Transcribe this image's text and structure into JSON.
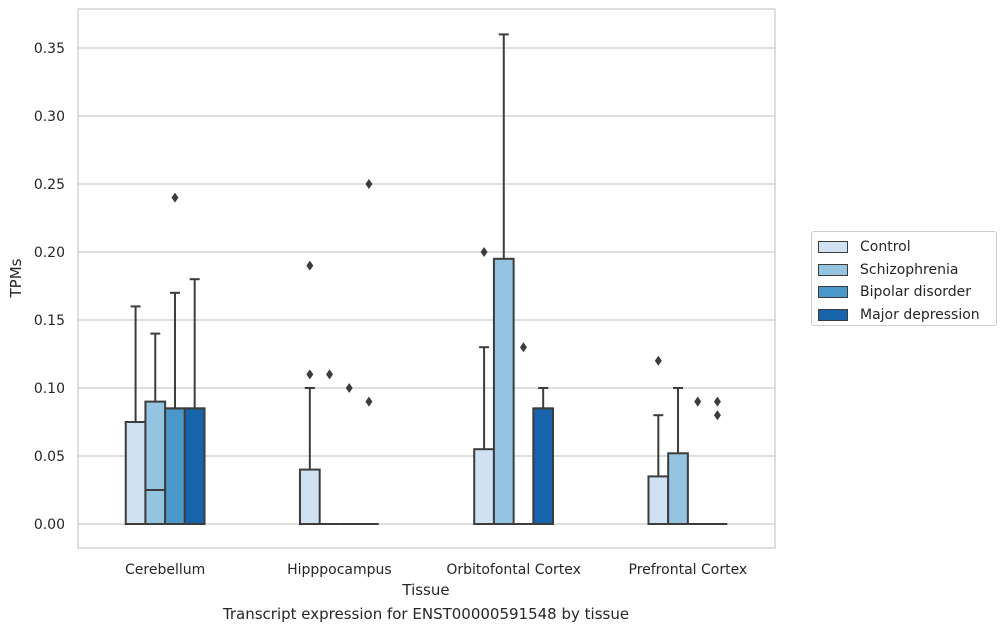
{
  "chart_data": {
    "type": "box",
    "xlabel": "Tissue",
    "ylabel": "TPMs",
    "caption": "Transcript expression for ENST00000591548 by tissue",
    "ylim": [
      -0.018,
      0.378
    ],
    "yticks": [
      "0.00",
      "0.05",
      "0.10",
      "0.15",
      "0.20",
      "0.25",
      "0.30",
      "0.35"
    ],
    "ytick_values": [
      0,
      0.05,
      0.1,
      0.15,
      0.2,
      0.25,
      0.3,
      0.35
    ],
    "grid": "horizontal",
    "legend_position": "right",
    "categories": [
      "Cerebellum",
      "Hipppocampus",
      "Orbitofontal Cortex",
      "Prefrontal Cortex"
    ],
    "series": [
      {
        "name": "Control",
        "color": "#d0e1f2",
        "boxes": [
          {
            "whisker_low": 0,
            "q1": 0,
            "median": 0,
            "q3": 0.075,
            "whisker_high": 0.16,
            "outliers": []
          },
          {
            "whisker_low": 0,
            "q1": 0,
            "median": 0,
            "q3": 0.04,
            "whisker_high": 0.1,
            "outliers": [
              0.11,
              0.19
            ]
          },
          {
            "whisker_low": 0,
            "q1": 0,
            "median": 0,
            "q3": 0.055,
            "whisker_high": 0.13,
            "outliers": [
              0.2
            ]
          },
          {
            "whisker_low": 0,
            "q1": 0,
            "median": 0,
            "q3": 0.035,
            "whisker_high": 0.08,
            "outliers": [
              0.12
            ]
          }
        ]
      },
      {
        "name": "Schizophrenia",
        "color": "#94c4df",
        "boxes": [
          {
            "whisker_low": 0,
            "q1": 0,
            "median": 0.025,
            "q3": 0.09,
            "whisker_high": 0.14,
            "outliers": []
          },
          {
            "whisker_low": 0,
            "q1": 0,
            "median": 0,
            "q3": 0,
            "whisker_high": 0,
            "outliers": [
              0.11
            ]
          },
          {
            "whisker_low": 0,
            "q1": 0,
            "median": 0,
            "q3": 0.195,
            "whisker_high": 0.36,
            "outliers": []
          },
          {
            "whisker_low": 0,
            "q1": 0,
            "median": 0,
            "q3": 0.052,
            "whisker_high": 0.1,
            "outliers": []
          }
        ]
      },
      {
        "name": "Bipolar disorder",
        "color": "#4a98c9",
        "boxes": [
          {
            "whisker_low": 0,
            "q1": 0,
            "median": 0.085,
            "q3": 0.085,
            "whisker_high": 0.17,
            "outliers": [
              0.24
            ]
          },
          {
            "whisker_low": 0,
            "q1": 0,
            "median": 0,
            "q3": 0,
            "whisker_high": 0,
            "outliers": [
              0.1
            ]
          },
          {
            "whisker_low": 0,
            "q1": 0,
            "median": 0,
            "q3": 0,
            "whisker_high": 0,
            "outliers": [
              0.13
            ]
          },
          {
            "whisker_low": 0,
            "q1": 0,
            "median": 0,
            "q3": 0,
            "whisker_high": 0,
            "outliers": [
              0.09
            ]
          }
        ]
      },
      {
        "name": "Major depression",
        "color": "#1764ab",
        "boxes": [
          {
            "whisker_low": 0,
            "q1": 0,
            "median": 0.085,
            "q3": 0.085,
            "whisker_high": 0.18,
            "outliers": []
          },
          {
            "whisker_low": 0,
            "q1": 0,
            "median": 0,
            "q3": 0,
            "whisker_high": 0,
            "outliers": [
              0.09,
              0.25
            ]
          },
          {
            "whisker_low": 0,
            "q1": 0,
            "median": 0.085,
            "q3": 0.085,
            "whisker_high": 0.1,
            "outliers": []
          },
          {
            "whisker_low": 0,
            "q1": 0,
            "median": 0,
            "q3": 0,
            "whisker_high": 0,
            "outliers": [
              0.08,
              0.09
            ]
          }
        ]
      }
    ]
  }
}
